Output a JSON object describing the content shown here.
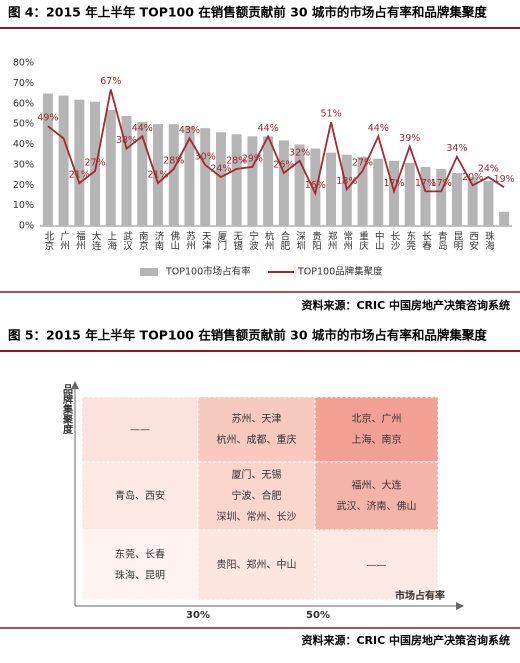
{
  "figure4": {
    "title": "图 4：2015 年上半年 TOP100 在销售额贡献前 30 城市的市场占有率和品牌集聚度",
    "chart_data": {
      "type": "combo",
      "categories": [
        "北京",
        "广州",
        "福州",
        "大连",
        "上海",
        "武汉",
        "南京",
        "济南",
        "佛山",
        "苏州",
        "天津",
        "厦门",
        "无锡",
        "宁波",
        "杭州",
        "合肥",
        "深圳",
        "贵阳",
        "郑州",
        "常州",
        "重庆",
        "中山",
        "长沙",
        "东莞",
        "长春",
        "青岛",
        "昆明",
        "西安",
        "珠海",
        null
      ],
      "series": [
        {
          "name": "TOP100市场占有率",
          "type": "bar",
          "color": "#b5b5b5",
          "values": [
            65,
            64,
            62,
            61,
            57,
            54,
            51,
            50,
            50,
            49,
            48,
            46,
            45,
            44,
            44,
            42,
            40,
            38,
            36,
            35,
            34,
            33,
            32,
            31,
            29,
            28,
            26,
            24,
            22,
            7
          ]
        },
        {
          "name": "TOP100品牌集聚度",
          "type": "line",
          "color": "#a32a2e",
          "values": [
            49,
            43,
            21,
            27,
            67,
            38,
            44,
            21,
            28,
            43,
            30,
            24,
            28,
            29,
            44,
            26,
            32,
            16,
            51,
            18,
            27,
            44,
            17,
            39,
            17,
            17,
            34,
            20,
            24,
            19
          ],
          "value_labels": [
            "49%",
            null,
            "21%",
            "27%",
            "67%",
            "38%",
            "44%",
            "21%",
            "28%",
            "43%",
            "30%",
            "24%",
            "28%",
            "29%",
            "44%",
            "26%",
            "32%",
            "16%",
            "51%",
            "18%",
            "27%",
            "44%",
            "17%",
            "39%",
            "17%",
            "17%",
            "34%",
            "20%",
            "24%",
            "19%"
          ]
        }
      ],
      "ylim": [
        0,
        80
      ],
      "yticks": [
        {
          "value": 0,
          "label": "0%"
        },
        {
          "value": 10,
          "label": "10%"
        },
        {
          "value": 20,
          "label": "20%"
        },
        {
          "value": 30,
          "label": "30%"
        },
        {
          "value": 40,
          "label": "40%"
        },
        {
          "value": 50,
          "label": "50%"
        },
        {
          "value": 60,
          "label": "60%"
        },
        {
          "value": 70,
          "label": "70%"
        },
        {
          "value": 80,
          "label": "80%"
        }
      ],
      "legend": "bottom"
    },
    "source": "资料来源：CRIC 中国房地产决策咨询系统"
  },
  "figure5": {
    "title": "图 5：2015 年上半年 TOP100 在销售额贡献前 30 城市的市场占有率和品牌集聚度",
    "y_axis_label": "品牌集聚度",
    "x_axis_label": "市场占有率",
    "x_marks": [
      "30%",
      "50%"
    ],
    "cells": [
      [
        [
          "——"
        ],
        [
          "苏州、天津",
          "杭州、成都、重庆"
        ],
        [
          "北京、广州",
          "上海、南京"
        ]
      ],
      [
        [
          "青岛、西安"
        ],
        [
          "厦门、无锡",
          "宁波、合肥",
          "深圳、常州、长沙"
        ],
        [
          "福州、大连",
          "武汉、济南、佛山"
        ]
      ],
      [
        [
          "东莞、长春",
          "珠海、昆明"
        ],
        [
          "贵阳、郑州、中山"
        ],
        [
          "——"
        ]
      ]
    ],
    "source": "资料来源：CRIC 中国房地产决策咨询系统"
  }
}
